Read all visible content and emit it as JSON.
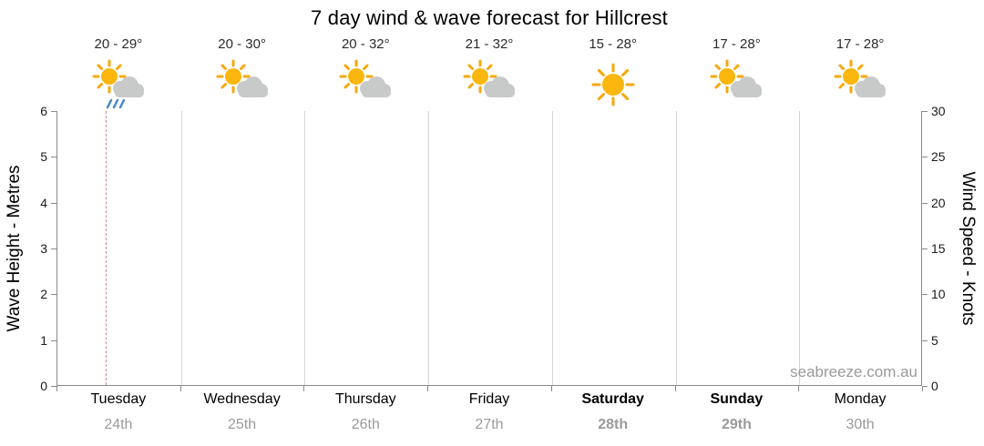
{
  "title": "7 day wind & wave forecast for Hillcrest",
  "watermark": "seabreeze.com.au",
  "left_axis": {
    "label": "Wave Height - Metres",
    "max": 6,
    "ticks": [
      0,
      1,
      2,
      3,
      4,
      5,
      6
    ]
  },
  "right_axis": {
    "label": "Wind Speed - Knots",
    "max": 30,
    "ticks": [
      0,
      5,
      10,
      15,
      20,
      25,
      30
    ]
  },
  "days": [
    {
      "name": "Tuesday",
      "date": "24th",
      "temp": "20 - 29°",
      "icon": "sun-cloud-rain",
      "bold": false
    },
    {
      "name": "Wednesday",
      "date": "25th",
      "temp": "20 - 30°",
      "icon": "sun-cloud",
      "bold": false
    },
    {
      "name": "Thursday",
      "date": "26th",
      "temp": "20 - 32°",
      "icon": "sun-cloud",
      "bold": false
    },
    {
      "name": "Friday",
      "date": "27th",
      "temp": "21 - 32°",
      "icon": "sun-cloud",
      "bold": false
    },
    {
      "name": "Saturday",
      "date": "28th",
      "temp": "15 - 28°",
      "icon": "sun",
      "bold": true
    },
    {
      "name": "Sunday",
      "date": "29th",
      "temp": "17 - 28°",
      "icon": "sun-cloud",
      "bold": true
    },
    {
      "name": "Monday",
      "date": "30th",
      "temp": "17 - 28°",
      "icon": "sun-cloud",
      "bold": false
    }
  ],
  "colors": {
    "sun": "#FBB70E",
    "sun_rays": "#F7A80B",
    "cloud": "#C8CACA",
    "rain": "#4A86C8",
    "now_line": "#C98B8B",
    "date_text": "#9A9A9A"
  },
  "chart_data": {
    "type": "line",
    "title": "7 day wind & wave forecast for Hillcrest",
    "categories": [
      "Tuesday 24th",
      "Wednesday 25th",
      "Thursday 26th",
      "Friday 27th",
      "Saturday 28th",
      "Sunday 29th",
      "Monday 30th"
    ],
    "series": [],
    "ylabel_left": "Wave Height - Metres",
    "ylim_left": [
      0,
      6
    ],
    "yticks_left": [
      0,
      1,
      2,
      3,
      4,
      5,
      6
    ],
    "ylabel_right": "Wind Speed - Knots",
    "ylim_right": [
      0,
      30
    ],
    "yticks_right": [
      0,
      5,
      10,
      15,
      20,
      25,
      30
    ],
    "legend": "none",
    "grid": "vertical day-separator gridlines only; plot area empty of data series",
    "annotations": [
      {
        "type": "vline",
        "style": "dashed",
        "x": "early Tuesday",
        "label": "current time marker"
      },
      {
        "type": "per-day-header",
        "temps": [
          "20 - 29°",
          "20 - 30°",
          "20 - 32°",
          "21 - 32°",
          "15 - 28°",
          "17 - 28°",
          "17 - 28°"
        ],
        "icons": [
          "sun-cloud-rain",
          "sun-cloud",
          "sun-cloud",
          "sun-cloud",
          "sun",
          "sun-cloud",
          "sun-cloud"
        ]
      }
    ]
  }
}
